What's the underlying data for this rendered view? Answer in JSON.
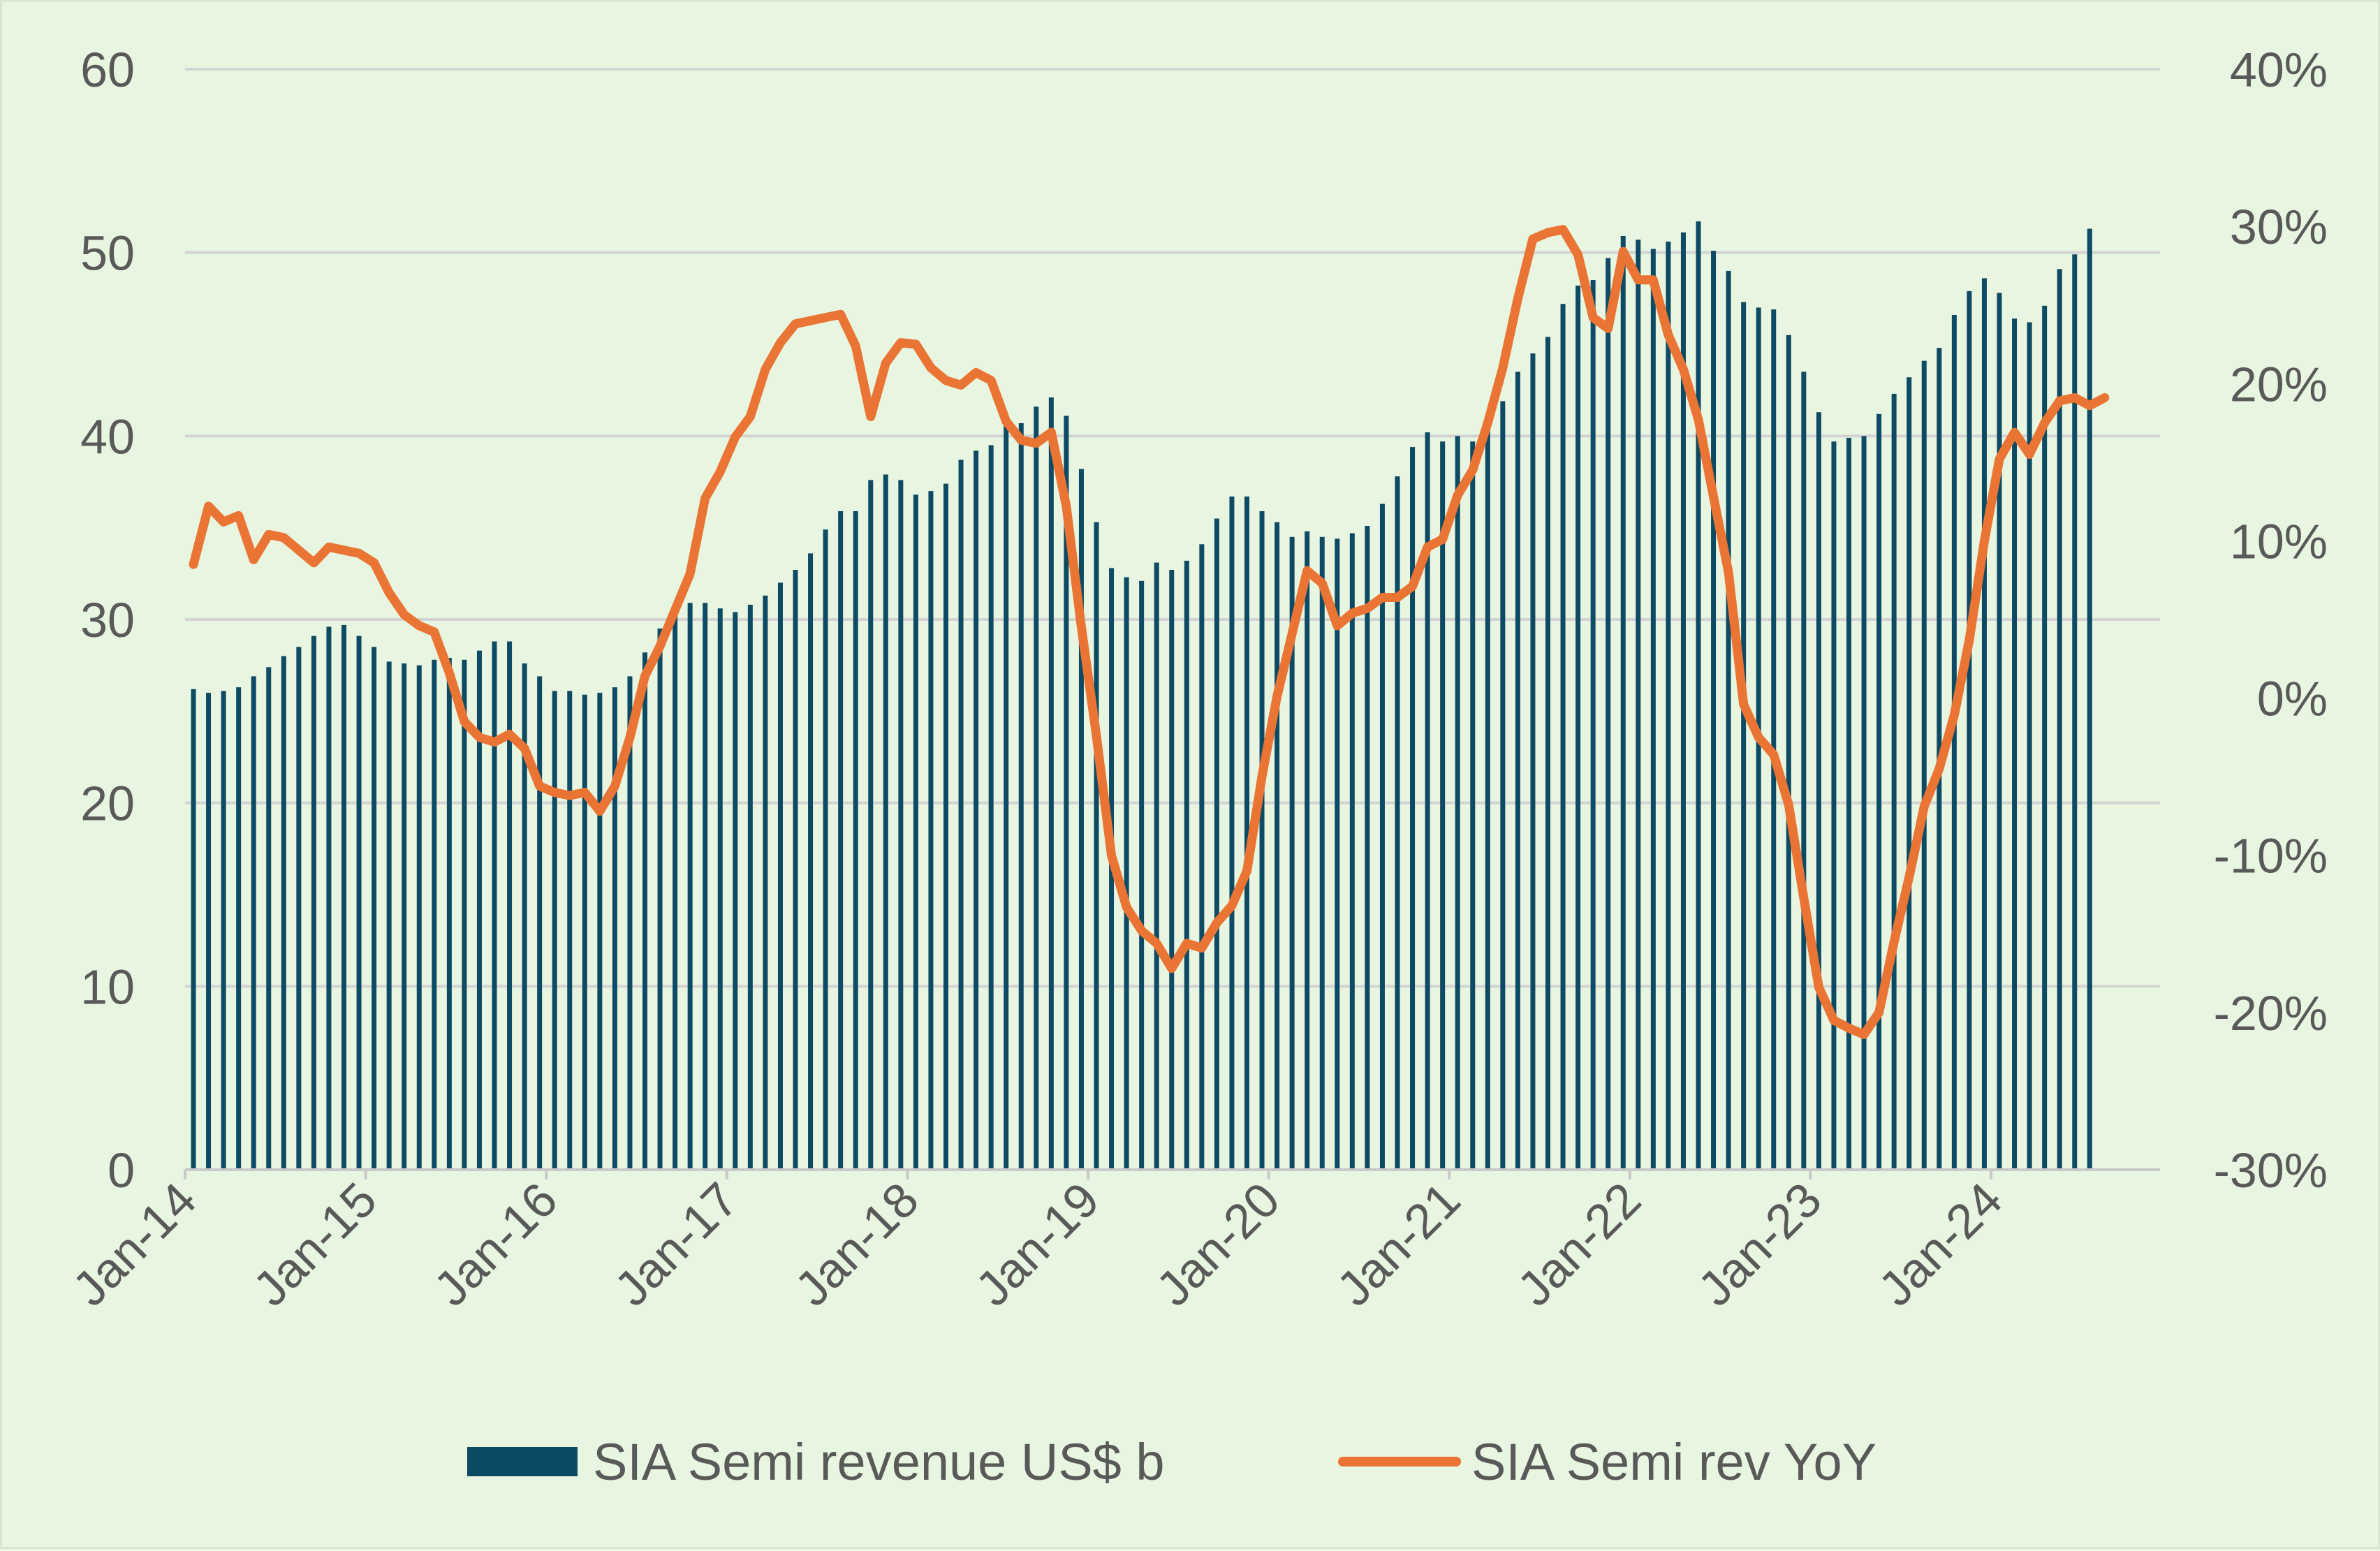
{
  "chart_data": {
    "type": "bar",
    "combo": "bar+line (dual axis)",
    "title": "",
    "xlabel": "",
    "ylabel": "",
    "y_left": {
      "ticks": [
        0,
        10,
        20,
        30,
        40,
        50,
        60
      ],
      "ylim": [
        0,
        60
      ]
    },
    "y_right": {
      "ticks": [
        "-30%",
        "-20%",
        "-10%",
        "0%",
        "10%",
        "20%",
        "30%",
        "40%"
      ],
      "ylim": [
        -30,
        40
      ],
      "unit": "%"
    },
    "x_tick_labels": [
      "Jan-14",
      "Jan-15",
      "Jan-16",
      "Jan-17",
      "Jan-18",
      "Jan-19",
      "Jan-20",
      "Jan-21",
      "Jan-22",
      "Jan-23",
      "Jan-24"
    ],
    "x_start": "Jan-14",
    "grid": "horizontal",
    "legend_position": "bottom",
    "colors": {
      "bars": "#0d4a63",
      "line": "#ea7433",
      "grid": "#d3d3d3",
      "background": "#e8f5e0",
      "text": "#595959"
    },
    "series": [
      {
        "name": "SIA Semi revenue US$ b",
        "type": "bar",
        "axis": "left",
        "values": [
          26.2,
          26.0,
          26.1,
          26.3,
          26.9,
          27.4,
          28.0,
          28.5,
          29.1,
          29.6,
          29.7,
          29.1,
          28.5,
          27.7,
          27.6,
          27.5,
          27.8,
          27.9,
          27.8,
          28.3,
          28.8,
          28.8,
          27.6,
          26.9,
          26.1,
          26.1,
          25.9,
          26.0,
          26.3,
          26.9,
          28.2,
          29.5,
          30.4,
          30.9,
          30.9,
          30.6,
          30.4,
          30.8,
          31.3,
          32.0,
          32.7,
          33.6,
          34.9,
          35.9,
          35.9,
          37.6,
          37.9,
          37.6,
          36.8,
          37.0,
          37.4,
          38.7,
          39.2,
          39.5,
          40.8,
          40.7,
          41.6,
          42.1,
          41.1,
          38.2,
          35.3,
          32.8,
          32.3,
          32.1,
          33.1,
          32.7,
          33.2,
          34.1,
          35.5,
          36.7,
          36.7,
          35.9,
          35.3,
          34.5,
          34.8,
          34.5,
          34.4,
          34.7,
          35.1,
          36.3,
          37.8,
          39.4,
          40.2,
          39.7,
          40.0,
          39.7,
          40.7,
          41.9,
          43.5,
          44.5,
          45.4,
          47.2,
          48.2,
          48.5,
          49.7,
          50.9,
          50.7,
          50.2,
          50.6,
          51.1,
          51.7,
          50.1,
          49.0,
          47.3,
          47.0,
          46.9,
          45.5,
          43.5,
          41.3,
          39.7,
          39.9,
          40.0,
          41.2,
          42.3,
          43.2,
          44.1,
          44.8,
          46.6,
          47.9,
          48.6,
          47.8,
          46.4,
          46.2,
          47.1,
          49.1,
          49.9,
          51.3
        ]
      },
      {
        "name": "SIA Semi rev YoY",
        "type": "line",
        "axis": "right",
        "unit": "%",
        "values": [
          8.5,
          12.2,
          11.2,
          11.6,
          8.8,
          10.4,
          10.2,
          9.4,
          8.6,
          9.6,
          9.4,
          9.2,
          8.6,
          6.7,
          5.3,
          4.6,
          4.2,
          1.6,
          -1.5,
          -2.5,
          -2.8,
          -2.3,
          -3.2,
          -5.6,
          -6.0,
          -6.2,
          -6.0,
          -7.2,
          -5.6,
          -2.5,
          1.4,
          3.3,
          5.6,
          7.9,
          12.7,
          14.4,
          16.6,
          17.9,
          20.9,
          22.6,
          23.8,
          24.0,
          24.2,
          24.4,
          22.4,
          17.9,
          21.3,
          22.6,
          22.5,
          21.0,
          20.2,
          19.9,
          20.7,
          20.2,
          17.6,
          16.4,
          16.2,
          16.9,
          12.2,
          4.5,
          -2.4,
          -10.0,
          -13.3,
          -14.8,
          -15.6,
          -17.2,
          -15.6,
          -15.9,
          -14.3,
          -13.2,
          -11.0,
          -5.0,
          0.1,
          4.1,
          8.1,
          7.3,
          4.6,
          5.4,
          5.7,
          6.4,
          6.4,
          7.1,
          9.6,
          10.1,
          12.9,
          14.5,
          17.5,
          21.0,
          25.4,
          29.2,
          29.6,
          29.8,
          28.2,
          24.2,
          23.5,
          28.4,
          26.6,
          26.6,
          23.1,
          20.9,
          17.7,
          12.8,
          8.0,
          -0.4,
          -2.5,
          -3.6,
          -6.8,
          -12.7,
          -18.4,
          -20.5,
          -21.0,
          -21.4,
          -20.0,
          -15.5,
          -11.4,
          -6.9,
          -4.5,
          -1.1,
          3.7,
          10.0,
          15.2,
          16.9,
          15.5,
          17.5,
          18.9,
          19.1,
          18.6,
          19.1
        ]
      }
    ]
  }
}
